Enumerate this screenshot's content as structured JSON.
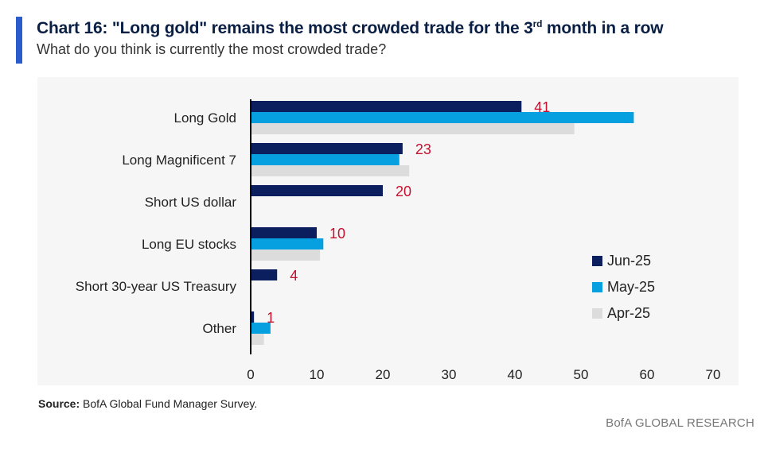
{
  "header": {
    "title_main": "Chart 16: \"Long gold\" remains the most crowded trade for the 3",
    "title_sup": "rd",
    "title_end": " month in a row",
    "subtitle": "What do you think is currently the most crowded trade?"
  },
  "colors": {
    "accent": "#2b5ccc",
    "jun": "#0b1f5e",
    "may": "#06a0e1",
    "apr": "#dcdcdc",
    "label": "#c8102e"
  },
  "chart_data": {
    "type": "bar",
    "orientation": "horizontal",
    "title": "Chart 16: \"Long gold\" remains the most crowded trade for the 3rd month in a row",
    "subtitle": "What do you think is currently the most crowded trade?",
    "categories": [
      "Long Gold",
      "Long Magnificent 7",
      "Short US dollar",
      "Long EU stocks",
      "Short 30-year US Treasury",
      "Other"
    ],
    "series": [
      {
        "name": "Jun-25",
        "values": [
          41,
          23,
          20,
          10,
          4,
          0.5
        ],
        "data_labels": [
          "41",
          "23",
          "20",
          "10",
          "4",
          "1"
        ]
      },
      {
        "name": "May-25",
        "values": [
          58,
          22.5,
          0,
          11,
          0,
          3
        ]
      },
      {
        "name": "Apr-25",
        "values": [
          49,
          24,
          0,
          10.5,
          0,
          2
        ]
      }
    ],
    "xlim": [
      0,
      70
    ],
    "xticks": [
      0,
      10,
      20,
      30,
      40,
      50,
      60,
      70
    ],
    "xlabel": "",
    "ylabel": "",
    "legend_position": "right",
    "grid": false
  },
  "footer": {
    "source_label": "Source:",
    "source_text": " BofA Global Fund Manager Survey.",
    "brand": "BofA GLOBAL RESEARCH"
  }
}
